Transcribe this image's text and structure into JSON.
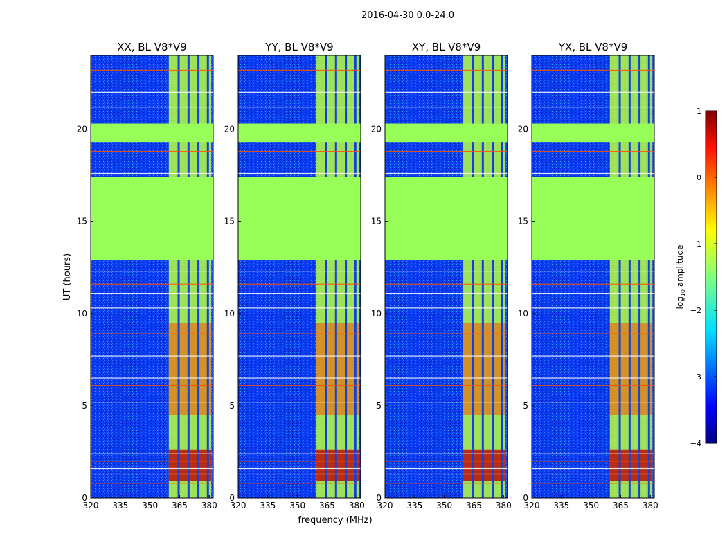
{
  "figure": {
    "suptitle": "2016-04-30 0.0-24.0",
    "ylabel": "UT (hours)",
    "xlabel": "frequency (MHz)"
  },
  "chart_data": [
    {
      "type": "heatmap",
      "title": "XX, BL V8*V9",
      "xlim": [
        320,
        382
      ],
      "ylim": [
        0,
        24
      ],
      "xticks": [
        "320",
        "335",
        "350",
        "365",
        "380"
      ],
      "yticks": [
        "0",
        "5",
        "10",
        "15",
        "20"
      ],
      "flagged_ut_ranges": [
        [
          12.9,
          17.4
        ],
        [
          19.3,
          20.3
        ]
      ],
      "active_band_mhz": [
        359.5,
        381
      ],
      "channel_gaps_mhz": [
        364.5,
        369.5,
        374.5,
        379.3
      ],
      "rfi_ut_hours": [
        0.8,
        1.3,
        1.6,
        2.0,
        2.4,
        5.2,
        6.1,
        6.5,
        7.7,
        8.9,
        10.3,
        11.1,
        11.6,
        12.3,
        17.6,
        18.8,
        21.2,
        22.0,
        23.2
      ]
    },
    {
      "type": "heatmap",
      "title": "YY, BL V8*V9",
      "xlim": [
        320,
        382
      ],
      "ylim": [
        0,
        24
      ],
      "xticks": [
        "320",
        "335",
        "350",
        "365",
        "380"
      ],
      "yticks": [
        "0",
        "5",
        "10",
        "15",
        "20"
      ],
      "flagged_ut_ranges": [
        [
          12.9,
          17.4
        ],
        [
          19.3,
          20.3
        ]
      ],
      "active_band_mhz": [
        359.5,
        381
      ],
      "channel_gaps_mhz": [
        364.5,
        369.5,
        374.5,
        379.3
      ],
      "rfi_ut_hours": [
        0.8,
        1.3,
        1.6,
        2.0,
        2.4,
        5.2,
        6.1,
        6.5,
        7.7,
        8.9,
        10.3,
        11.1,
        11.6,
        12.3,
        17.6,
        18.8,
        21.2,
        22.0,
        23.2
      ]
    },
    {
      "type": "heatmap",
      "title": "XY, BL V8*V9",
      "xlim": [
        320,
        382
      ],
      "ylim": [
        0,
        24
      ],
      "xticks": [
        "320",
        "335",
        "350",
        "365",
        "380"
      ],
      "yticks": [
        "0",
        "5",
        "10",
        "15",
        "20"
      ],
      "flagged_ut_ranges": [
        [
          12.9,
          17.4
        ],
        [
          19.3,
          20.3
        ]
      ],
      "active_band_mhz": [
        359.5,
        381
      ],
      "channel_gaps_mhz": [
        364.5,
        369.5,
        374.5,
        379.3
      ],
      "rfi_ut_hours": [
        0.8,
        1.3,
        1.6,
        2.0,
        2.4,
        5.2,
        6.1,
        6.5,
        7.7,
        8.9,
        10.3,
        11.1,
        11.6,
        12.3,
        17.6,
        18.8,
        21.2,
        22.0,
        23.2
      ]
    },
    {
      "type": "heatmap",
      "title": "YX, BL V8*V9",
      "xlim": [
        320,
        382
      ],
      "ylim": [
        0,
        24
      ],
      "xticks": [
        "320",
        "335",
        "350",
        "365",
        "380"
      ],
      "yticks": [
        "0",
        "5",
        "10",
        "15",
        "20"
      ],
      "flagged_ut_ranges": [
        [
          12.9,
          17.4
        ],
        [
          19.3,
          20.3
        ]
      ],
      "active_band_mhz": [
        359.5,
        381
      ],
      "channel_gaps_mhz": [
        364.5,
        369.5,
        374.5,
        379.3
      ],
      "rfi_ut_hours": [
        0.8,
        1.3,
        1.6,
        2.0,
        2.4,
        5.2,
        6.1,
        6.5,
        7.7,
        8.9,
        10.3,
        11.1,
        11.6,
        12.3,
        17.6,
        18.8,
        21.2,
        22.0,
        23.2
      ]
    }
  ],
  "colorbar": {
    "label_prefix": "log",
    "label_sub": "10",
    "label_suffix": " amplitude",
    "range": [
      -4,
      1
    ],
    "ticks": [
      "1",
      "0",
      "−1",
      "−2",
      "−3",
      "−4"
    ],
    "colormap": "jet"
  },
  "colors": {
    "background": "#0c3cf0",
    "flagged": "#98ff58",
    "band": "#b8ff40",
    "hot": "#ff5000",
    "gap": "#1040e0"
  }
}
